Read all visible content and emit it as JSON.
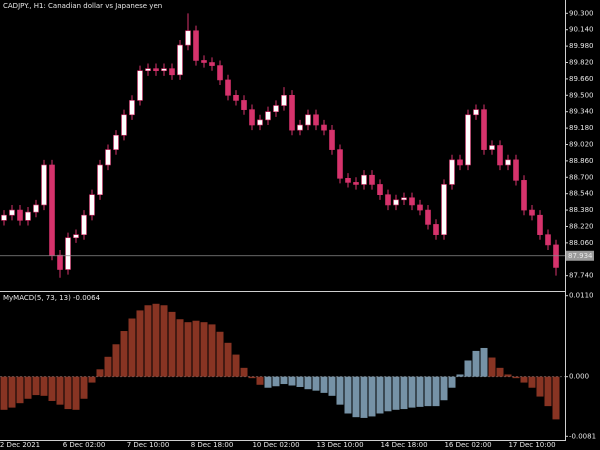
{
  "chart_data": [
    {
      "type": "candlestick",
      "title": "CADJPY., H1:  Canadian dollar vs Japanese yen",
      "categories": [
        null,
        null,
        "2 Dec 2021",
        null,
        null,
        null,
        null,
        null,
        null,
        null,
        "6 Dec 02:00",
        null,
        null,
        null,
        null,
        null,
        null,
        null,
        "7 Dec 10:00",
        null,
        null,
        null,
        null,
        null,
        null,
        null,
        "8 Dec 18:00",
        null,
        null,
        null,
        null,
        null,
        null,
        null,
        "10 Dec 02:00",
        null,
        null,
        null,
        null,
        null,
        null,
        null,
        "13 Dec 10:00",
        null,
        null,
        null,
        null,
        null,
        null,
        null,
        "14 Dec 18:00",
        null,
        null,
        null,
        null,
        null,
        null,
        null,
        "16 Dec 02:00",
        null,
        null,
        null,
        null,
        null,
        null,
        null,
        "17 Dec 10:00",
        null,
        null,
        null
      ],
      "open": [
        88.28,
        88.33,
        88.38,
        88.28,
        88.36,
        88.43,
        88.82,
        87.94,
        87.8,
        88.11,
        88.14,
        88.33,
        88.53,
        88.82,
        88.97,
        89.11,
        89.31,
        89.45,
        89.74,
        89.76,
        89.74,
        89.76,
        89.7,
        89.99,
        90.13,
        89.84,
        89.82,
        89.79,
        89.65,
        89.5,
        89.45,
        89.36,
        89.21,
        89.26,
        89.34,
        89.4,
        89.5,
        89.16,
        89.21,
        89.31,
        89.21,
        89.16,
        88.97,
        88.69,
        88.65,
        88.63,
        88.72,
        88.63,
        88.53,
        88.43,
        88.48,
        88.5,
        88.43,
        88.38,
        88.24,
        88.14,
        88.63,
        88.87,
        88.82,
        89.31,
        89.36,
        88.97,
        89.01,
        88.82,
        88.87,
        88.67,
        88.38,
        88.33,
        88.14,
        88.04
      ],
      "high": [
        88.38,
        88.43,
        88.43,
        88.41,
        88.48,
        88.87,
        88.87,
        87.99,
        88.16,
        88.19,
        88.38,
        88.58,
        88.87,
        89.02,
        89.16,
        89.36,
        89.5,
        89.79,
        89.81,
        89.81,
        89.81,
        89.81,
        90.04,
        90.3,
        90.18,
        89.89,
        89.87,
        89.84,
        89.7,
        89.55,
        89.5,
        89.41,
        89.31,
        89.39,
        89.45,
        89.58,
        89.55,
        89.26,
        89.36,
        89.36,
        89.26,
        89.21,
        89.02,
        88.74,
        88.7,
        88.77,
        88.77,
        88.68,
        88.58,
        88.53,
        88.55,
        88.55,
        88.48,
        88.43,
        88.29,
        88.68,
        88.92,
        88.92,
        89.36,
        89.41,
        89.41,
        89.06,
        89.06,
        88.92,
        88.92,
        88.72,
        88.43,
        88.38,
        88.19,
        88.09
      ],
      "low": [
        88.23,
        88.28,
        88.23,
        88.23,
        88.31,
        88.38,
        87.89,
        87.72,
        87.75,
        88.06,
        88.09,
        88.28,
        88.48,
        88.77,
        88.92,
        89.06,
        89.26,
        89.4,
        89.69,
        89.69,
        89.69,
        89.65,
        89.65,
        89.94,
        89.79,
        89.77,
        89.74,
        89.6,
        89.45,
        89.4,
        89.31,
        89.16,
        89.16,
        89.21,
        89.29,
        89.35,
        89.11,
        89.11,
        89.16,
        89.16,
        89.11,
        88.92,
        88.64,
        88.6,
        88.58,
        88.58,
        88.58,
        88.48,
        88.38,
        88.38,
        88.43,
        88.38,
        88.33,
        88.19,
        88.09,
        88.09,
        88.58,
        88.77,
        88.77,
        89.26,
        88.92,
        88.92,
        88.77,
        88.77,
        88.62,
        88.33,
        88.28,
        88.09,
        87.99,
        87.74
      ],
      "close": [
        88.33,
        88.38,
        88.28,
        88.36,
        88.43,
        88.82,
        87.94,
        87.8,
        88.11,
        88.14,
        88.33,
        88.53,
        88.82,
        88.97,
        89.11,
        89.31,
        89.45,
        89.74,
        89.76,
        89.74,
        89.76,
        89.7,
        89.99,
        90.13,
        89.84,
        89.82,
        89.79,
        89.65,
        89.5,
        89.45,
        89.36,
        89.21,
        89.26,
        89.34,
        89.4,
        89.5,
        89.16,
        89.21,
        89.31,
        89.21,
        89.16,
        88.97,
        88.69,
        88.65,
        88.63,
        88.72,
        88.63,
        88.53,
        88.43,
        88.48,
        88.5,
        88.43,
        88.38,
        88.24,
        88.14,
        88.63,
        88.87,
        88.82,
        89.31,
        89.36,
        88.97,
        89.01,
        88.82,
        88.87,
        88.67,
        88.38,
        88.33,
        88.14,
        88.04,
        87.82
      ],
      "up_color": "#ffffff",
      "down_color": "#d6336c",
      "ylim": [
        87.6,
        90.43
      ],
      "yticks": [
        {
          "value": 90.3,
          "label": "90.300"
        },
        {
          "value": 90.14,
          "label": "90.140"
        },
        {
          "value": 89.98,
          "label": "89.980"
        },
        {
          "value": 89.82,
          "label": "89.820"
        },
        {
          "value": 89.66,
          "label": "89.660"
        },
        {
          "value": 89.5,
          "label": "89.500"
        },
        {
          "value": 89.34,
          "label": "89.340"
        },
        {
          "value": 89.18,
          "label": "89.180"
        },
        {
          "value": 89.02,
          "label": "89.020"
        },
        {
          "value": 88.86,
          "label": "88.860"
        },
        {
          "value": 88.7,
          "label": "88.700"
        },
        {
          "value": 88.54,
          "label": "88.540"
        },
        {
          "value": 88.38,
          "label": "88.380"
        },
        {
          "value": 88.22,
          "label": "88.220"
        },
        {
          "value": 88.06,
          "label": "88.060"
        },
        {
          "value": 87.74,
          "label": "87.740"
        }
      ],
      "current_price": 87.934
    },
    {
      "type": "bar",
      "title": "MyMACD(5, 73, 13) -0.0064",
      "values": [
        -0.0045,
        -0.0042,
        -0.0036,
        -0.003,
        -0.0025,
        -0.0026,
        -0.0033,
        -0.0038,
        -0.0044,
        -0.0045,
        -0.003,
        -0.0008,
        0.001,
        0.0027,
        0.0044,
        0.0062,
        0.0079,
        0.009,
        0.0097,
        0.0099,
        0.0097,
        0.0088,
        0.0078,
        0.0074,
        0.0076,
        0.0074,
        0.0071,
        0.0061,
        0.0046,
        0.003,
        0.0012,
        -0.0002,
        -0.0011,
        -0.0015,
        -0.0013,
        -0.001,
        -0.0012,
        -0.0014,
        -0.0017,
        -0.0019,
        -0.0022,
        -0.0026,
        -0.0038,
        -0.005,
        -0.0055,
        -0.0056,
        -0.0054,
        -0.005,
        -0.0047,
        -0.0045,
        -0.0044,
        -0.0042,
        -0.0041,
        -0.004,
        -0.004,
        -0.0032,
        -0.0015,
        0.0003,
        0.0022,
        0.0035,
        0.0039,
        0.0026,
        0.0012,
        0.0003,
        -0.0002,
        -0.0008,
        -0.0015,
        -0.0027,
        -0.004,
        -0.0058
      ],
      "colors": [
        "#b5452f",
        "#b5452f",
        "#b5452f",
        "#b5452f",
        "#b5452f",
        "#b5452f",
        "#b5452f",
        "#b5452f",
        "#b5452f",
        "#b5452f",
        "#b5452f",
        "#b5452f",
        "#b5452f",
        "#b5452f",
        "#b5452f",
        "#b5452f",
        "#b5452f",
        "#b5452f",
        "#b5452f",
        "#b5452f",
        "#b5452f",
        "#b5452f",
        "#b5452f",
        "#b5452f",
        "#b5452f",
        "#b5452f",
        "#b5452f",
        "#b5452f",
        "#b5452f",
        "#b5452f",
        "#b5452f",
        "#b5452f",
        "#b5452f",
        "#9ec3de",
        "#9ec3de",
        "#9ec3de",
        "#9ec3de",
        "#9ec3de",
        "#9ec3de",
        "#9ec3de",
        "#9ec3de",
        "#9ec3de",
        "#9ec3de",
        "#9ec3de",
        "#9ec3de",
        "#9ec3de",
        "#9ec3de",
        "#9ec3de",
        "#9ec3de",
        "#9ec3de",
        "#9ec3de",
        "#9ec3de",
        "#9ec3de",
        "#9ec3de",
        "#9ec3de",
        "#9ec3de",
        "#9ec3de",
        "#9ec3de",
        "#9ec3de",
        "#9ec3de",
        "#9ec3de",
        "#b5452f",
        "#b5452f",
        "#b5452f",
        "#b5452f",
        "#b5452f",
        "#b5452f",
        "#b5452f",
        "#b5452f",
        "#b5452f"
      ],
      "ylim": [
        -0.0086,
        0.0115
      ],
      "yticks": [
        {
          "value": 0.011,
          "label": "0.0110"
        },
        {
          "value": 0,
          "label": "0.000"
        },
        -0.0081
      ]
    }
  ]
}
